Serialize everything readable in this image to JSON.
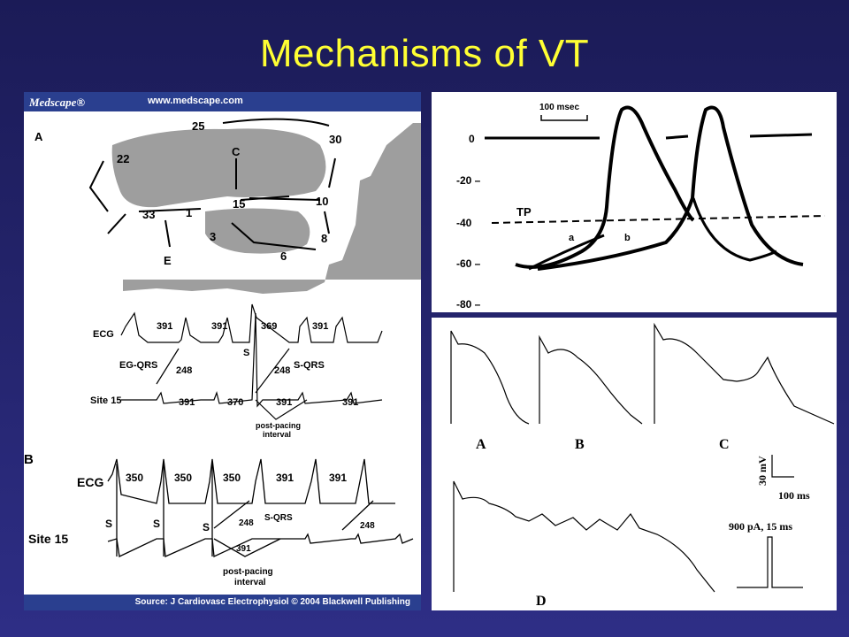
{
  "slide": {
    "title": "Mechanisms of VT",
    "colors": {
      "background": "#23236a",
      "title": "#ffff33",
      "header_bar": "#2a3f8f"
    }
  },
  "left_figure": {
    "logo": "Medscape®",
    "url": "www.medscape.com",
    "source": "Source: J Cardiovasc Electrophysiol © 2004 Blackwell Publishing",
    "panel_a": {
      "label": "A",
      "sites": [
        "25",
        "30",
        "22",
        "C",
        "15",
        "10",
        "33",
        "1",
        "3",
        "8",
        "6",
        "E"
      ],
      "ecg_label": "ECG",
      "site_label": "Site 15",
      "ecg_intervals": [
        "391",
        "391",
        "369",
        "391"
      ],
      "site_intervals": [
        "391",
        "370",
        "391",
        "391"
      ],
      "eg_qrs": "EG-QRS",
      "s_qrs": "S-QRS",
      "eg_value": "248",
      "s_value": "248",
      "stim": "S",
      "post_pacing": [
        "post-pacing",
        "interval"
      ]
    },
    "panel_b": {
      "label": "B",
      "ecg_label": "ECG",
      "site_label": "Site 15",
      "ecg_intervals": [
        "350",
        "350",
        "350",
        "391",
        "391"
      ],
      "stim": [
        "S",
        "S",
        "S"
      ],
      "s_qrs": "S-QRS",
      "values": [
        "248",
        "248"
      ],
      "post_value": "391",
      "post_pacing": [
        "post-pacing",
        "interval"
      ]
    }
  },
  "top_right_figure": {
    "scale": "100 msec",
    "y_ticks": [
      "0",
      "-20 –",
      "-40",
      "-60 –",
      "-80 –"
    ],
    "tp": "TP",
    "curve_labels": [
      "a",
      "b"
    ]
  },
  "bottom_right_figure": {
    "trace_labels": [
      "A",
      "B",
      "C",
      "D"
    ],
    "scale_v": "30 mV",
    "scale_t": "100 ms",
    "stimulus": "900   pA, 15 ms"
  }
}
